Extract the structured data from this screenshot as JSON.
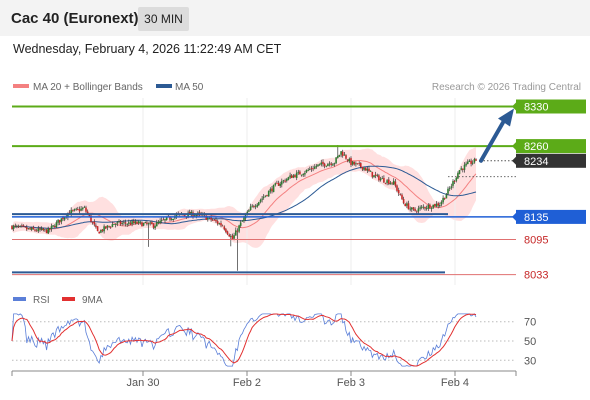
{
  "header": {
    "title": "Cac 40 (Euronext)",
    "timeframe": "30 MIN",
    "datetime": "Wednesday, February 4, 2026 11:22:49 AM CET"
  },
  "colors": {
    "up_candle": "#2e7d32",
    "down_candle": "#c62828",
    "bollinger_band": "#ffd5d5",
    "ma20": "#f48080",
    "ma50": "#2c5a94",
    "resistance": "#5cab18",
    "support": "#1f5fd6",
    "level_red": "#e07070",
    "arrow": "#2c5a94",
    "rsi": "#5b7fd8",
    "rsi_ma": "#e23030"
  },
  "chart_data": [
    {
      "type": "candlestick",
      "legend": [
        {
          "label": "MA 20 + Bollinger Bands",
          "color": "#f48080"
        },
        {
          "label": "MA 50",
          "color": "#2c5a94"
        }
      ],
      "credit": "Research © 2026 Trading Central",
      "x_ticks": [
        "Jan 30",
        "Feb 2",
        "Feb 3",
        "Feb 4"
      ],
      "ylim": [
        8020,
        8345
      ],
      "levels": [
        {
          "value": 8330,
          "label": "8330",
          "kind": "resistance"
        },
        {
          "value": 8260,
          "label": "8260",
          "kind": "resistance"
        },
        {
          "value": 8234,
          "label": "8234",
          "kind": "last"
        },
        {
          "value": 8135,
          "label": "8135",
          "kind": "support"
        },
        {
          "value": 8095,
          "label": "8095",
          "kind": "minor"
        },
        {
          "value": 8033,
          "label": "8033",
          "kind": "minor"
        }
      ],
      "projection": {
        "from": 8234,
        "to": 8330
      }
    },
    {
      "type": "line",
      "legend": [
        {
          "label": "RSI",
          "color": "#5b7fd8"
        },
        {
          "label": "9MA",
          "color": "#e23030"
        }
      ],
      "ylim": [
        20,
        80
      ],
      "y_ticks": [
        "70",
        "50",
        "30"
      ]
    }
  ]
}
